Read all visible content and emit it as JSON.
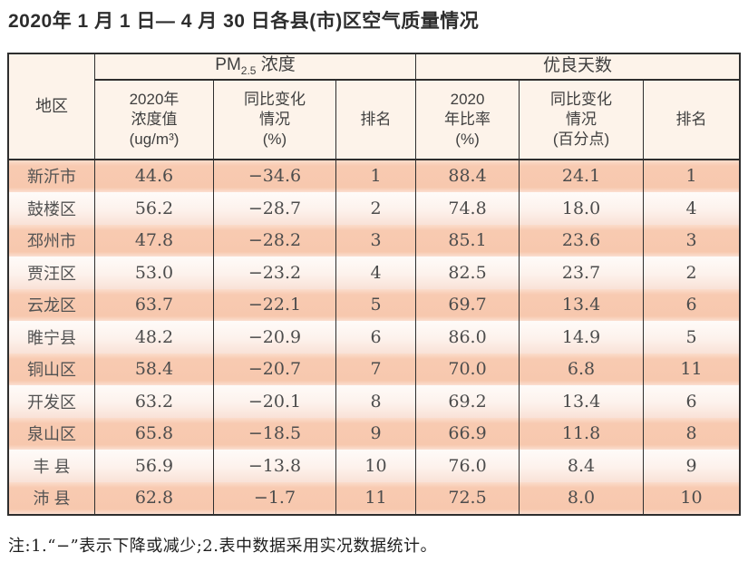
{
  "title": "2020年 1 月 1 日— 4 月 30 日各县(市)区空气质量情况",
  "table": {
    "header": {
      "region": "地区",
      "pm_group": {
        "prefix": "PM",
        "sub": "2.5",
        "suffix": " 浓度"
      },
      "good_group": "优良天数",
      "pm_value": "2020年\n浓度值\n(ug/m³)",
      "pm_change": "同比变化\n情况\n(%)",
      "pm_rank": "排名",
      "good_rate": "2020\n年比率\n(%)",
      "good_change": "同比变化\n情况\n(百分点)",
      "good_rank": "排名"
    },
    "rows": [
      {
        "region": "新沂市",
        "pm_value": "44.6",
        "pm_change": "−34.6",
        "pm_rank": "1",
        "good_rate": "88.4",
        "good_change": "24.1",
        "good_rank": "1"
      },
      {
        "region": "鼓楼区",
        "pm_value": "56.2",
        "pm_change": "−28.7",
        "pm_rank": "2",
        "good_rate": "74.8",
        "good_change": "18.0",
        "good_rank": "4"
      },
      {
        "region": "邳州市",
        "pm_value": "47.8",
        "pm_change": "−28.2",
        "pm_rank": "3",
        "good_rate": "85.1",
        "good_change": "23.6",
        "good_rank": "3"
      },
      {
        "region": "贾汪区",
        "pm_value": "53.0",
        "pm_change": "−23.2",
        "pm_rank": "4",
        "good_rate": "82.5",
        "good_change": "23.7",
        "good_rank": "2"
      },
      {
        "region": "云龙区",
        "pm_value": "63.7",
        "pm_change": "−22.1",
        "pm_rank": "5",
        "good_rate": "69.7",
        "good_change": "13.4",
        "good_rank": "6"
      },
      {
        "region": "睢宁县",
        "pm_value": "48.2",
        "pm_change": "−20.9",
        "pm_rank": "6",
        "good_rate": "86.0",
        "good_change": "14.9",
        "good_rank": "5"
      },
      {
        "region": "铜山区",
        "pm_value": "58.4",
        "pm_change": "−20.7",
        "pm_rank": "7",
        "good_rate": "70.0",
        "good_change": "6.8",
        "good_rank": "11"
      },
      {
        "region": "开发区",
        "pm_value": "63.2",
        "pm_change": "−20.1",
        "pm_rank": "8",
        "good_rate": "69.2",
        "good_change": "13.4",
        "good_rank": "6"
      },
      {
        "region": "泉山区",
        "pm_value": "65.8",
        "pm_change": "−18.5",
        "pm_rank": "9",
        "good_rate": "66.9",
        "good_change": "11.8",
        "good_rank": "8"
      },
      {
        "region": "丰 县",
        "pm_value": "56.9",
        "pm_change": "−13.8",
        "pm_rank": "10",
        "good_rate": "76.0",
        "good_change": "8.4",
        "good_rank": "9"
      },
      {
        "region": "沛 县",
        "pm_value": "62.8",
        "pm_change": "−1.7",
        "pm_rank": "11",
        "good_rate": "72.5",
        "good_change": "8.0",
        "good_rank": "10"
      }
    ]
  },
  "footnote": "注:1.“−”表示下降或减少;2.表中数据采用实况数据统计。",
  "colors": {
    "row_odd": "#f8cab1",
    "row_even": "#fdf2ec",
    "header_bg": "#fdf3ea",
    "border": "#2e2e2e",
    "title_text": "#2d2d2d",
    "data_text": "#4c4c4c"
  }
}
